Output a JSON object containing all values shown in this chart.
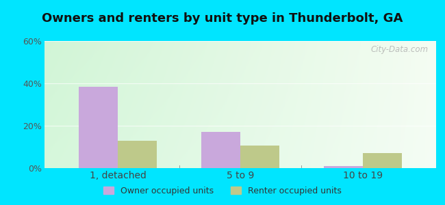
{
  "title": "Owners and renters by unit type in Thunderbolt, GA",
  "categories": [
    "1, detached",
    "5 to 9",
    "10 to 19"
  ],
  "owner_values": [
    38.5,
    17.0,
    1.0
  ],
  "renter_values": [
    13.0,
    10.5,
    7.0
  ],
  "owner_color": "#c9a8dc",
  "renter_color": "#bec98a",
  "ylim": [
    0,
    60
  ],
  "yticks": [
    0,
    20,
    40,
    60
  ],
  "ytick_labels": [
    "0%",
    "20%",
    "40%",
    "60%"
  ],
  "outer_bg": "#00e5ff",
  "bar_width": 0.32,
  "legend_owner": "Owner occupied units",
  "legend_renter": "Renter occupied units",
  "watermark": "City-Data.com"
}
